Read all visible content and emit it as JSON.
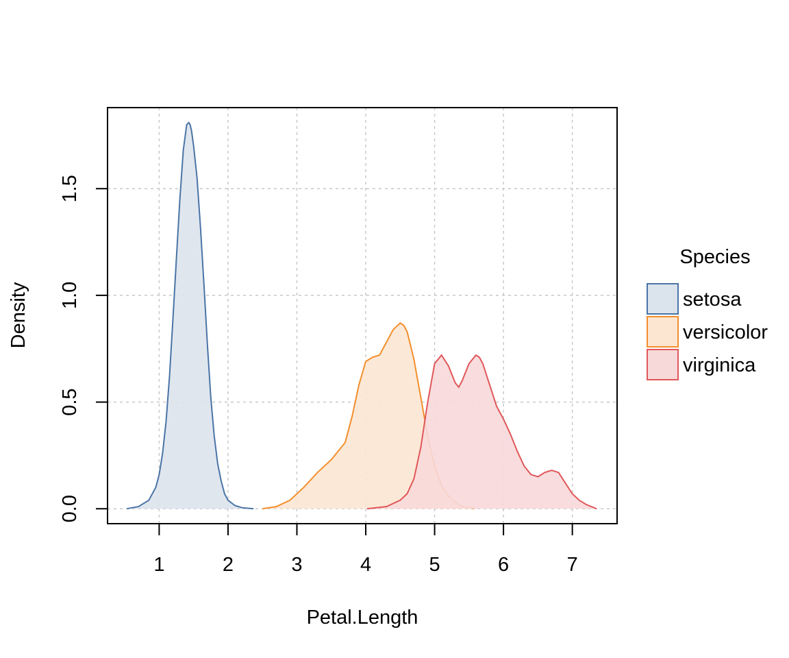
{
  "chart_data": {
    "type": "area",
    "title": "",
    "xlabel": "Petal.Length",
    "ylabel": "Density",
    "xlim": [
      0.25,
      7.65
    ],
    "ylim": [
      -0.07,
      1.88
    ],
    "xticks": [
      1,
      2,
      3,
      4,
      5,
      6,
      7
    ],
    "xtick_labels": [
      "1",
      "2",
      "3",
      "4",
      "5",
      "6",
      "7"
    ],
    "yticks": [
      0.0,
      0.5,
      1.0,
      1.5
    ],
    "ytick_labels": [
      "0.0",
      "0.5",
      "1.0",
      "1.5"
    ],
    "grid": true,
    "legend": {
      "title": "Species",
      "placement": "right",
      "entries": [
        "setosa",
        "versicolor",
        "virginica"
      ]
    },
    "series": [
      {
        "name": "setosa",
        "color": "#4a74a6",
        "fill": "#dbe3ec",
        "x": [
          0.53,
          0.7,
          0.85,
          0.95,
          1.0,
          1.05,
          1.1,
          1.15,
          1.2,
          1.25,
          1.3,
          1.35,
          1.4,
          1.43,
          1.45,
          1.47,
          1.5,
          1.55,
          1.6,
          1.65,
          1.7,
          1.75,
          1.8,
          1.85,
          1.9,
          1.95,
          2.0,
          2.1,
          2.2,
          2.37
        ],
        "y": [
          0.0,
          0.01,
          0.04,
          0.1,
          0.16,
          0.26,
          0.41,
          0.62,
          0.89,
          1.17,
          1.45,
          1.68,
          1.8,
          1.81,
          1.8,
          1.77,
          1.7,
          1.55,
          1.32,
          1.05,
          0.77,
          0.52,
          0.34,
          0.21,
          0.13,
          0.07,
          0.04,
          0.015,
          0.005,
          0.0
        ]
      },
      {
        "name": "versicolor",
        "color": "#f28e2b",
        "fill": "#fce6d2",
        "x": [
          2.5,
          2.7,
          2.9,
          3.1,
          3.3,
          3.5,
          3.7,
          3.8,
          3.9,
          4.0,
          4.1,
          4.2,
          4.3,
          4.4,
          4.5,
          4.55,
          4.6,
          4.7,
          4.8,
          4.9,
          5.0,
          5.1,
          5.2,
          5.3,
          5.4,
          5.58
        ],
        "y": [
          0.0,
          0.01,
          0.04,
          0.1,
          0.17,
          0.23,
          0.31,
          0.43,
          0.58,
          0.69,
          0.71,
          0.72,
          0.78,
          0.84,
          0.87,
          0.86,
          0.83,
          0.7,
          0.52,
          0.34,
          0.2,
          0.11,
          0.06,
          0.03,
          0.01,
          0.0
        ]
      },
      {
        "name": "virginica",
        "color": "#e15759",
        "fill": "#f8d9da",
        "x": [
          4.02,
          4.3,
          4.5,
          4.6,
          4.7,
          4.8,
          4.9,
          5.0,
          5.1,
          5.2,
          5.3,
          5.35,
          5.4,
          5.5,
          5.6,
          5.65,
          5.7,
          5.8,
          5.9,
          6.0,
          6.1,
          6.2,
          6.3,
          6.4,
          6.5,
          6.6,
          6.7,
          6.8,
          6.9,
          7.0,
          7.1,
          7.2,
          7.35
        ],
        "y": [
          0.0,
          0.01,
          0.04,
          0.07,
          0.14,
          0.29,
          0.5,
          0.68,
          0.72,
          0.67,
          0.59,
          0.57,
          0.6,
          0.68,
          0.72,
          0.71,
          0.68,
          0.58,
          0.48,
          0.42,
          0.35,
          0.27,
          0.2,
          0.16,
          0.15,
          0.17,
          0.18,
          0.17,
          0.12,
          0.07,
          0.04,
          0.02,
          0.0
        ]
      }
    ]
  }
}
